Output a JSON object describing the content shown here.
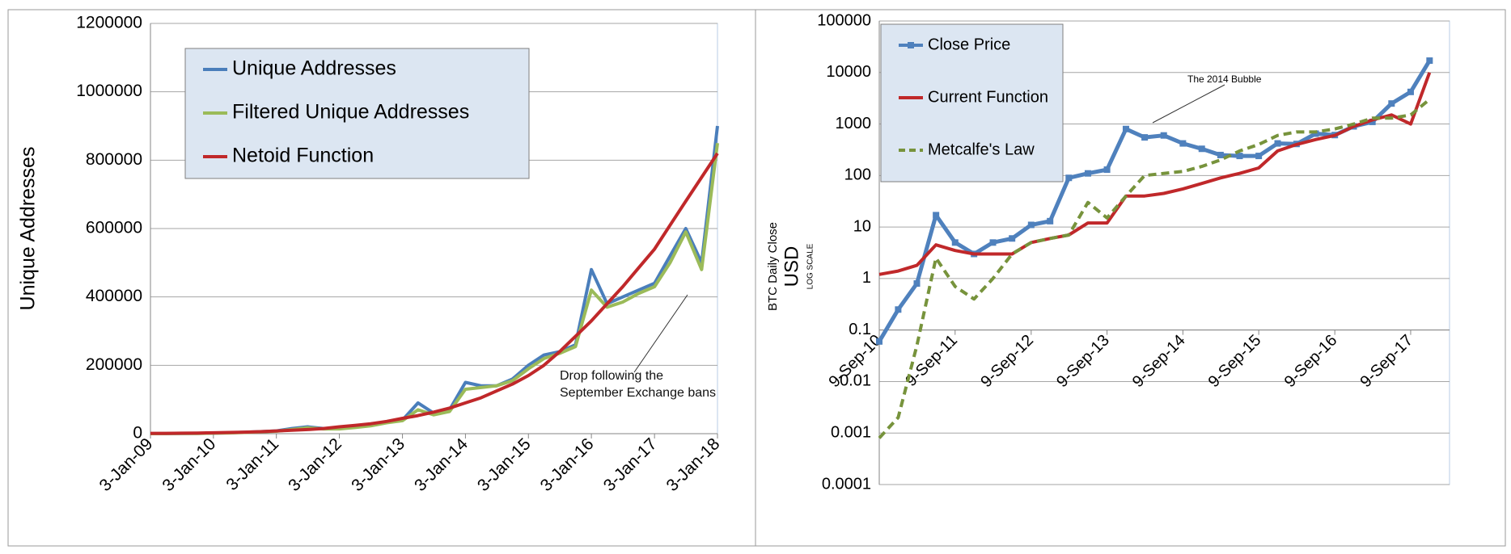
{
  "chart_data": [
    {
      "type": "line",
      "ylabel": "Unique Addresses",
      "x": [
        "2009-01-03",
        "2009-04-03",
        "2009-07-03",
        "2009-10-03",
        "2010-01-03",
        "2010-04-03",
        "2010-07-03",
        "2010-10-03",
        "2011-01-03",
        "2011-04-03",
        "2011-07-03",
        "2011-10-03",
        "2012-01-03",
        "2012-04-03",
        "2012-07-03",
        "2012-10-03",
        "2013-01-03",
        "2013-04-03",
        "2013-07-03",
        "2013-10-03",
        "2014-01-03",
        "2014-04-03",
        "2014-07-03",
        "2014-10-03",
        "2015-01-03",
        "2015-04-03",
        "2015-07-03",
        "2015-10-03",
        "2016-01-03",
        "2016-04-03",
        "2016-07-03",
        "2016-10-03",
        "2017-01-03",
        "2017-04-03",
        "2017-07-03",
        "2017-10-03",
        "2018-01-03"
      ],
      "xlim": [
        "2009-01-03",
        "2018-01-03"
      ],
      "xticks": [
        {
          "value": "2009-01-03",
          "label": "3-Jan-09"
        },
        {
          "value": "2010-01-03",
          "label": "3-Jan-10"
        },
        {
          "value": "2011-01-03",
          "label": "3-Jan-11"
        },
        {
          "value": "2012-01-03",
          "label": "3-Jan-12"
        },
        {
          "value": "2013-01-03",
          "label": "3-Jan-13"
        },
        {
          "value": "2014-01-03",
          "label": "3-Jan-14"
        },
        {
          "value": "2015-01-03",
          "label": "3-Jan-15"
        },
        {
          "value": "2016-01-03",
          "label": "3-Jan-16"
        },
        {
          "value": "2017-01-03",
          "label": "3-Jan-17"
        },
        {
          "value": "2018-01-03",
          "label": "3-Jan-18"
        }
      ],
      "ylim": [
        0,
        1200000
      ],
      "yticks": [
        0,
        200000,
        400000,
        600000,
        800000,
        1000000,
        1200000
      ],
      "log_y": false,
      "grid": true,
      "legend": "upper left",
      "series": [
        {
          "name": "Unique Addresses",
          "color": "#4a7ebb",
          "values": [
            100,
            200,
            500,
            1000,
            1500,
            2500,
            4000,
            6000,
            8000,
            15000,
            20000,
            15000,
            15000,
            20000,
            25000,
            35000,
            40000,
            90000,
            60000,
            70000,
            150000,
            140000,
            140000,
            160000,
            200000,
            230000,
            240000,
            260000,
            480000,
            380000,
            400000,
            420000,
            440000,
            520000,
            600000,
            500000,
            900000
          ]
        },
        {
          "name": "Filtered Unique Addresses",
          "color": "#9bbb59",
          "values": [
            100,
            200,
            400,
            800,
            1300,
            2200,
            3500,
            5500,
            7000,
            12000,
            17000,
            14000,
            14000,
            18000,
            23000,
            32000,
            38000,
            70000,
            55000,
            65000,
            130000,
            135000,
            140000,
            155000,
            190000,
            220000,
            235000,
            255000,
            420000,
            370000,
            385000,
            410000,
            430000,
            500000,
            590000,
            480000,
            850000
          ]
        },
        {
          "name": "Netoid Function",
          "color": "#c0282a",
          "values": [
            1000,
            1000,
            1500,
            2000,
            2500,
            3500,
            4500,
            6000,
            8000,
            10000,
            12000,
            15000,
            20000,
            24000,
            29000,
            36000,
            45000,
            53000,
            63000,
            75000,
            90000,
            105000,
            125000,
            145000,
            170000,
            200000,
            240000,
            285000,
            330000,
            380000,
            430000,
            485000,
            540000,
            610000,
            680000,
            750000,
            820000
          ]
        }
      ],
      "annotations": [
        {
          "text": "Drop following the September Exchange bans"
        }
      ]
    },
    {
      "type": "line",
      "ylabel": "BTC Daily Close",
      "ylabel_unit": "USD",
      "ylabel_note": "LOG SCALE",
      "x": [
        "2010-09-09",
        "2010-12-09",
        "2011-03-09",
        "2011-06-09",
        "2011-09-09",
        "2011-12-09",
        "2012-03-09",
        "2012-06-09",
        "2012-09-09",
        "2012-12-09",
        "2013-03-09",
        "2013-06-09",
        "2013-09-09",
        "2013-12-09",
        "2014-03-09",
        "2014-06-09",
        "2014-09-09",
        "2014-12-09",
        "2015-03-09",
        "2015-06-09",
        "2015-09-09",
        "2015-12-09",
        "2016-03-09",
        "2016-06-09",
        "2016-09-09",
        "2016-12-09",
        "2017-03-09",
        "2017-06-09",
        "2017-09-09",
        "2017-12-09"
      ],
      "xlim": [
        "2010-09-09",
        "2018-03-15"
      ],
      "xticks": [
        {
          "value": "2010-09-09",
          "label": "9-Sep-10"
        },
        {
          "value": "2011-09-09",
          "label": "9-Sep-11"
        },
        {
          "value": "2012-09-09",
          "label": "9-Sep-12"
        },
        {
          "value": "2013-09-09",
          "label": "9-Sep-13"
        },
        {
          "value": "2014-09-09",
          "label": "9-Sep-14"
        },
        {
          "value": "2015-09-09",
          "label": "9-Sep-15"
        },
        {
          "value": "2016-09-09",
          "label": "9-Sep-16"
        },
        {
          "value": "2017-09-09",
          "label": "9-Sep-17"
        }
      ],
      "ylim": [
        0.0001,
        100000
      ],
      "yticks": [
        0.0001,
        0.001,
        0.01,
        0.1,
        1,
        10,
        100,
        1000,
        10000,
        100000
      ],
      "log_y": true,
      "grid": true,
      "legend": "upper left",
      "series": [
        {
          "name": "Close Price",
          "color": "#4f81bd",
          "marker": "square",
          "values": [
            0.06,
            0.25,
            0.8,
            17,
            5,
            3,
            5,
            6,
            11,
            13,
            90,
            110,
            130,
            800,
            550,
            600,
            420,
            330,
            250,
            240,
            240,
            420,
            410,
            650,
            610,
            900,
            1100,
            2500,
            4200,
            17000
          ]
        },
        {
          "name": "Current Function",
          "color": "#c0282a",
          "values": [
            1.2,
            1.4,
            1.8,
            4.5,
            3.5,
            3,
            3,
            3,
            5,
            6,
            7,
            12,
            12,
            40,
            40,
            45,
            55,
            70,
            90,
            110,
            140,
            300,
            400,
            500,
            600,
            900,
            1200,
            1500,
            1000,
            10000
          ]
        },
        {
          "name": "Metcalfe's Law",
          "color": "#77933c",
          "line_style": "dashed",
          "values": [
            0.0008,
            0.002,
            0.05,
            2.5,
            0.7,
            0.4,
            1,
            3,
            5,
            6,
            7,
            30,
            15,
            40,
            100,
            110,
            120,
            150,
            200,
            300,
            400,
            600,
            700,
            700,
            800,
            1000,
            1300,
            1300,
            1500,
            3000
          ]
        }
      ],
      "annotations": [
        {
          "text": "The 2014 Bubble"
        }
      ]
    }
  ]
}
